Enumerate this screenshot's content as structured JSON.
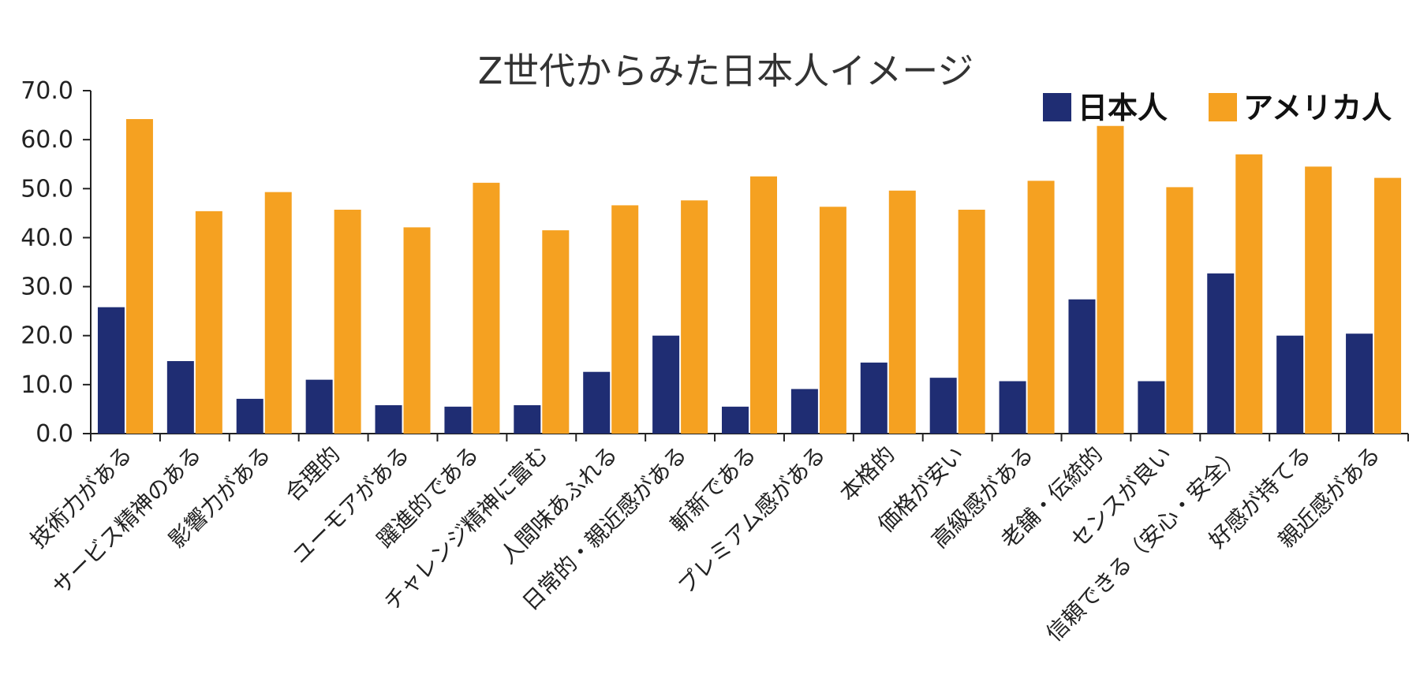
{
  "chart_data": {
    "type": "bar",
    "title": "Z世代からみた日本人イメージ",
    "xlabel": "",
    "ylabel": "",
    "ylim": [
      0,
      70
    ],
    "yticks": [
      "0.0",
      "10.0",
      "20.0",
      "30.0",
      "40.0",
      "50.0",
      "60.0",
      "70.0"
    ],
    "grid": false,
    "legend_position": "top-right",
    "categories": [
      "技術力がある",
      "サービス精神のある",
      "影響力がある",
      "合理的",
      "ユーモアがある",
      "躍進的である",
      "チャレンジ精神に富む",
      "人間味あふれる",
      "日常的・親近感がある",
      "斬新である",
      "プレミアム感がある",
      "本格的",
      "価格が安い",
      "高級感がある",
      "老舗・伝統的",
      "センスが良い",
      "信頼できる（安心・安全）",
      "好感が持てる",
      "親近感がある"
    ],
    "series": [
      {
        "name": "日本人",
        "color": "#1f2d73",
        "values": [
          25.8,
          14.8,
          7.1,
          11.0,
          5.8,
          5.5,
          5.8,
          12.6,
          20.0,
          5.5,
          9.1,
          14.5,
          11.4,
          10.7,
          27.4,
          10.7,
          32.7,
          20.0,
          20.4
        ]
      },
      {
        "name": "アメリカ人",
        "color": "#f5a121",
        "values": [
          64.2,
          45.4,
          49.3,
          45.7,
          42.1,
          51.2,
          41.5,
          46.6,
          47.6,
          52.5,
          46.3,
          49.6,
          45.7,
          51.6,
          62.8,
          50.3,
          57.0,
          54.5,
          52.2
        ]
      }
    ]
  }
}
